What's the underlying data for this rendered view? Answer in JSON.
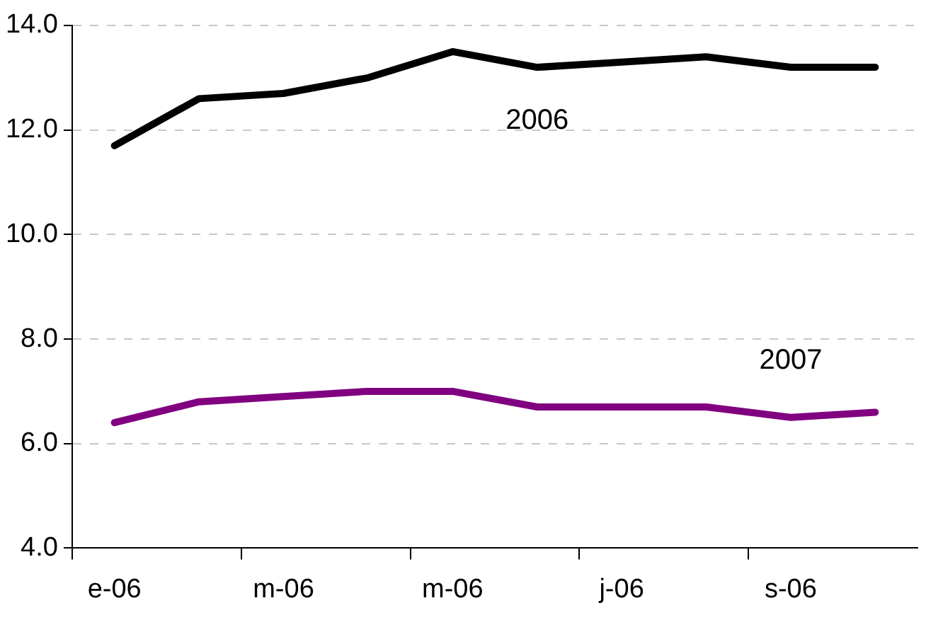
{
  "chart_data": {
    "type": "line",
    "categories": [
      "e-06",
      null,
      "m-06",
      null,
      "m-06",
      null,
      "j-06",
      null,
      "s-06",
      null
    ],
    "series": [
      {
        "name": "2006",
        "color": "#000000",
        "values": [
          11.7,
          12.6,
          12.7,
          13.0,
          13.5,
          13.2,
          13.3,
          13.4,
          13.2,
          13.2
        ]
      },
      {
        "name": "2007",
        "color": "#800080",
        "values": [
          6.4,
          6.8,
          6.9,
          7.0,
          7.0,
          6.7,
          6.7,
          6.7,
          6.5,
          6.6
        ]
      }
    ],
    "ylim": [
      4,
      14
    ],
    "yticks": [
      {
        "value": 4,
        "label": "4.0"
      },
      {
        "value": 6,
        "label": "6.0"
      },
      {
        "value": 8,
        "label": "8.0"
      },
      {
        "value": 10,
        "label": "10.0"
      },
      {
        "value": 12,
        "label": "12.0"
      },
      {
        "value": 14,
        "label": "14.0"
      }
    ],
    "grid": "y",
    "legend": false,
    "marker": "none",
    "line_style": "solid"
  }
}
